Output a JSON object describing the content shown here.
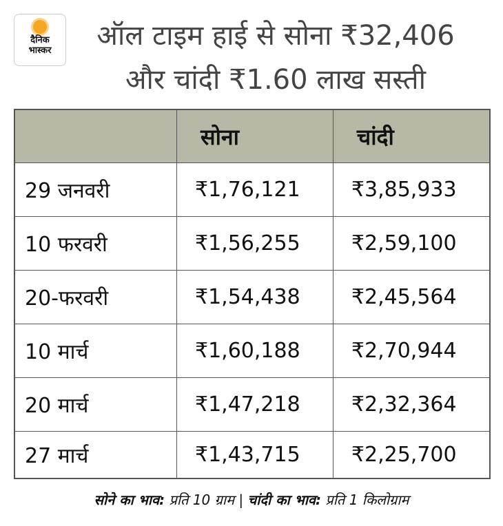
{
  "logo": {
    "line1": "दैनिक",
    "line2": "भास्कर"
  },
  "title": {
    "line1": "ऑल टाइम हाई से सोना ₹32,406",
    "line2": "और चांदी ₹1.60 लाख सस्ती"
  },
  "table": {
    "headers": [
      "",
      "सोना",
      "चांदी"
    ],
    "rows": [
      [
        "29 जनवरी",
        "₹1,76,121",
        "₹3,85,933"
      ],
      [
        "10 फरवरी",
        "₹1,56,255",
        "₹2,59,100"
      ],
      [
        "20-फरवरी",
        "₹1,54,438",
        "₹2,45,564"
      ],
      [
        "10 मार्च",
        "₹1,60,188",
        "₹2,70,944"
      ],
      [
        "20 मार्च",
        "₹1,47,218",
        "₹2,32,364"
      ],
      [
        "27 मार्च",
        "₹1,43,715",
        "₹2,25,700"
      ]
    ]
  },
  "footer": {
    "gold_label": "सोने का भाव:",
    "gold_unit": " प्रति 10 ग्राम | ",
    "silver_label": "चांदी का भाव:",
    "silver_unit": " प्रति 1 किलोग्राम"
  }
}
